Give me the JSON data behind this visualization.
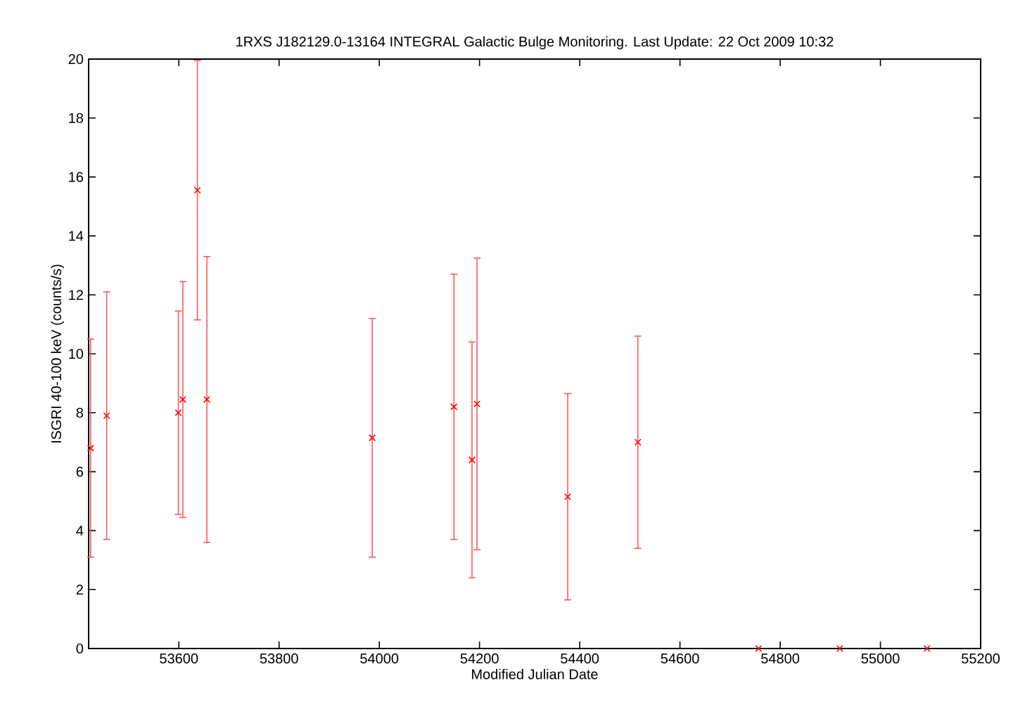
{
  "chart_data": {
    "type": "scatter",
    "title": "1RXS J182129.0-13164   INTEGRAL Galactic Bulge Monitoring.  Last Update: 22 Oct 2009 10:32",
    "xlabel": "Modified Julian Date",
    "ylabel": "ISGRI 40-100 keV (counts/s)",
    "x": [
      53424,
      53456,
      53599,
      53608,
      53637,
      53656,
      53986,
      54149,
      54185,
      54195,
      54376,
      54516,
      54757,
      54919,
      55093
    ],
    "series": [
      {
        "color": "#ff0000",
        "values": [
          6.8,
          7.9,
          8.0,
          8.45,
          15.55,
          8.45,
          7.15,
          8.2,
          6.4,
          8.3,
          5.15,
          7.0,
          0,
          0,
          0
        ],
        "errors": [
          3.7,
          4.2,
          3.45,
          4.0,
          4.4,
          4.85,
          4.05,
          4.5,
          4.0,
          4.95,
          3.5,
          3.6,
          null,
          null,
          null
        ]
      }
    ],
    "xlim": [
      53420,
      55200
    ],
    "xticks": [
      53600,
      53800,
      54000,
      54200,
      54400,
      54600,
      54800,
      55000,
      55200
    ],
    "ylim": [
      0,
      20
    ],
    "yticks": [
      0,
      2,
      4,
      6,
      8,
      10,
      12,
      14,
      16,
      18,
      20
    ],
    "marker": "cross",
    "grid": false
  }
}
